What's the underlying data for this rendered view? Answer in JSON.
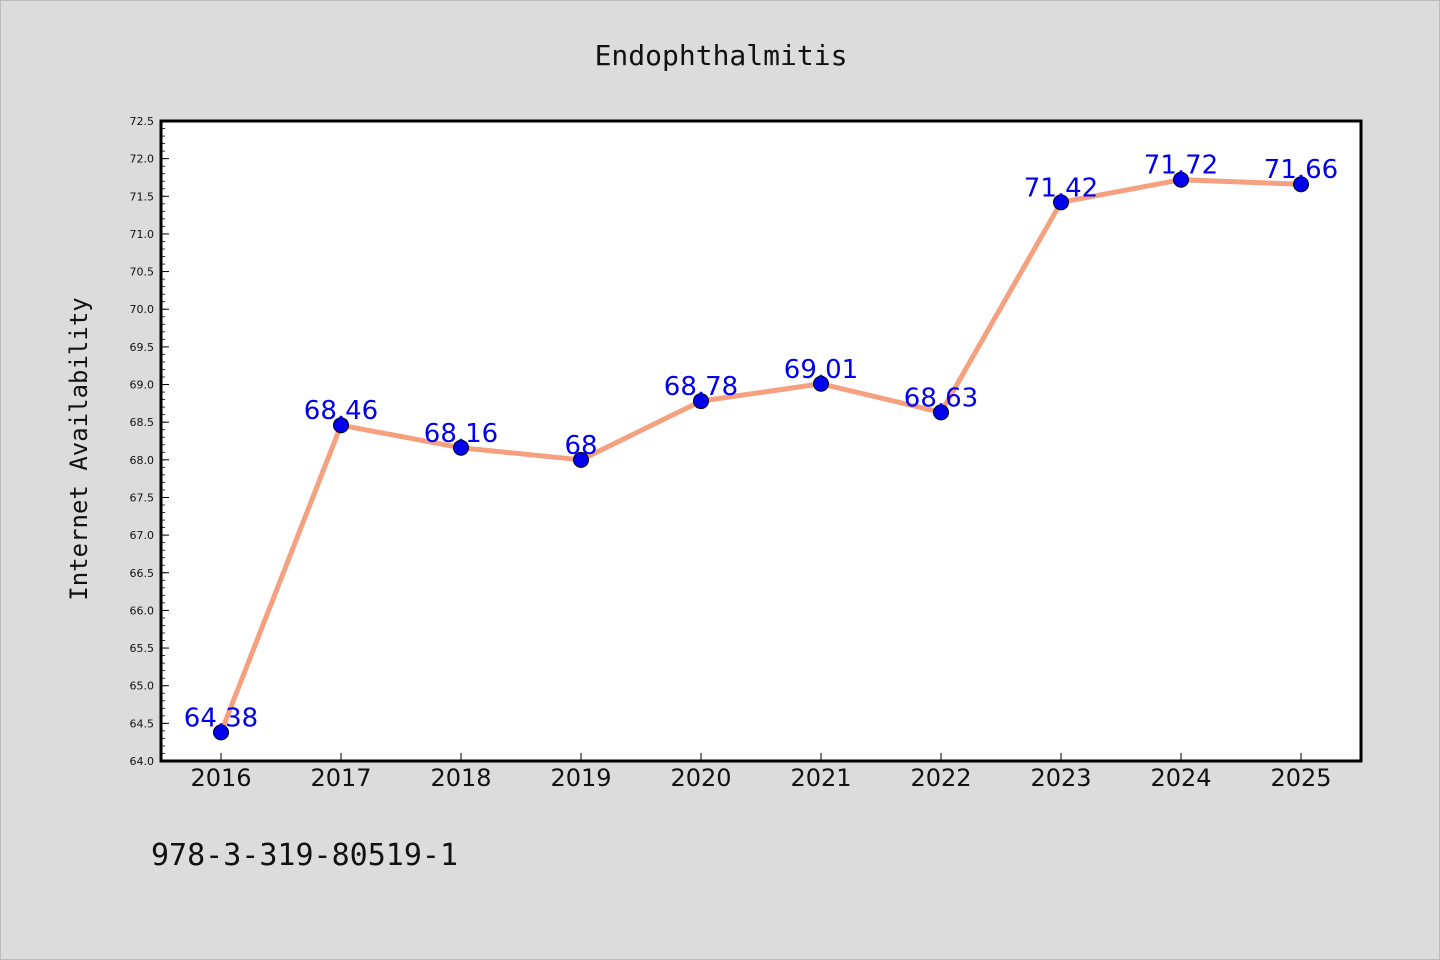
{
  "chart_data": {
    "type": "line",
    "title": "Endophthalmitis",
    "xlabel": "",
    "ylabel": "Internet Availability",
    "categories": [
      "2016",
      "2017",
      "2018",
      "2019",
      "2020",
      "2021",
      "2022",
      "2023",
      "2024",
      "2025"
    ],
    "series": [
      {
        "values": [
          64.38,
          68.46,
          68.16,
          68,
          68.78,
          69.01,
          68.63,
          71.42,
          71.72,
          71.66
        ],
        "labels": [
          "64.38",
          "68.46",
          "68.16",
          "68",
          "68.78",
          "69.01",
          "68.63",
          "71.42",
          "71.72",
          "71.66"
        ]
      }
    ],
    "ylim": [
      64.0,
      72.5
    ],
    "ytick_step": 0.5,
    "yticks": [
      "64.0",
      "64.5",
      "65.0",
      "65.5",
      "66.0",
      "66.5",
      "67.0",
      "67.5",
      "68.0",
      "68.5",
      "69.0",
      "69.5",
      "70.0",
      "70.5",
      "71.0",
      "71.5",
      "72.0",
      "72.5"
    ],
    "grid": false,
    "colors": {
      "line": "#f5a07e",
      "marker": "#0000ee",
      "marker_edge": "#000000",
      "label": "#0000ee",
      "background": "#dcdcdc",
      "plot_background": "#ffffff"
    },
    "footer": "978-3-319-80519-1"
  }
}
